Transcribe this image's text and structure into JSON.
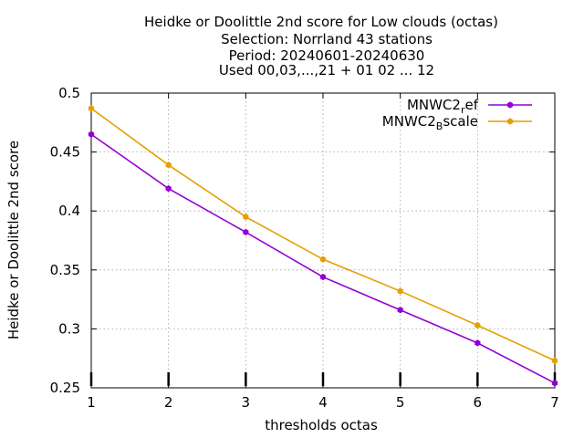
{
  "title_lines": [
    "Heidke or Doolittle 2nd score  for Low clouds (octas)",
    "Selection: Norrland     43 stations",
    "Period: 20240601-20240630",
    "Used 00,03,...,21 + 01 02 ... 12"
  ],
  "chart_data": {
    "type": "line",
    "title": "Heidke or Doolittle 2nd score  for Low clouds (octas)",
    "xlabel": "thresholds octas",
    "ylabel": "Heidke or Doolittle 2nd score",
    "x": [
      1,
      2,
      3,
      4,
      5,
      6,
      7
    ],
    "xlim": [
      1,
      7
    ],
    "ylim": [
      0.25,
      0.5
    ],
    "xticks": [
      "1",
      "2",
      "3",
      "4",
      "5",
      "6",
      "7"
    ],
    "yticks": [
      "0.25",
      "0.3",
      "0.35",
      "0.4",
      "0.45",
      "0.5"
    ],
    "grid": true,
    "legend_position": "top-right",
    "series": [
      {
        "name": "MNWC2_ref",
        "legend_base": "MNWC2",
        "legend_sub": "r",
        "legend_rest": "ef",
        "color": "#9400d3",
        "values": [
          0.465,
          0.419,
          0.382,
          0.344,
          0.316,
          0.288,
          0.254
        ]
      },
      {
        "name": "MNWC2_Bscale",
        "legend_base": "MNWC2",
        "legend_sub": "B",
        "legend_rest": "scale",
        "color": "#e69f00",
        "values": [
          0.487,
          0.439,
          0.395,
          0.359,
          0.332,
          0.303,
          0.273
        ]
      }
    ]
  }
}
